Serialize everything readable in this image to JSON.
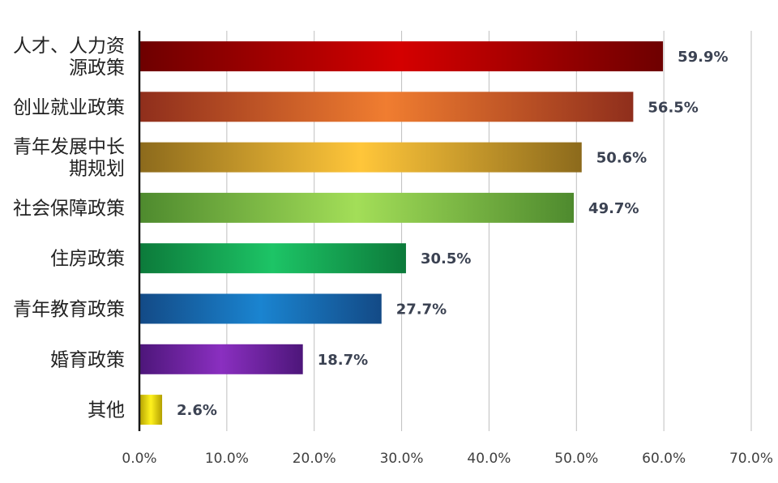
{
  "chart_data": {
    "type": "bar",
    "orientation": "horizontal",
    "title": "",
    "xlabel": "",
    "ylabel": "",
    "xlim": [
      0,
      70
    ],
    "x_ticks": [
      0,
      10,
      20,
      30,
      40,
      50,
      60,
      70
    ],
    "x_tick_labels": [
      "0.0%",
      "10.0%",
      "20.0%",
      "30.0%",
      "40.0%",
      "50.0%",
      "60.0%",
      "70.0%"
    ],
    "grid": true,
    "categories": [
      {
        "label_lines": [
          "人才、人力资",
          "源政策"
        ],
        "value": 59.9,
        "value_label": "59.9%",
        "color": "#d40000",
        "color_dark": "#6e0000"
      },
      {
        "label_lines": [
          "创业就业政策"
        ],
        "value": 56.5,
        "value_label": "56.5%",
        "color": "#f07d30",
        "color_dark": "#8f2e1c"
      },
      {
        "label_lines": [
          "青年发展中长",
          "期规划"
        ],
        "value": 50.6,
        "value_label": "50.6%",
        "color": "#ffc63a",
        "color_dark": "#8c6a1c"
      },
      {
        "label_lines": [
          "社会保障政策"
        ],
        "value": 49.7,
        "value_label": "49.7%",
        "color": "#a3de58",
        "color_dark": "#4e8a2e"
      },
      {
        "label_lines": [
          "住房政策"
        ],
        "value": 30.5,
        "value_label": "30.5%",
        "color": "#1dc466",
        "color_dark": "#0c7a3a"
      },
      {
        "label_lines": [
          "青年教育政策"
        ],
        "value": 27.7,
        "value_label": "27.7%",
        "color": "#1a84d0",
        "color_dark": "#134a86"
      },
      {
        "label_lines": [
          "婚育政策"
        ],
        "value": 18.7,
        "value_label": "18.7%",
        "color": "#8a2fc0",
        "color_dark": "#4d167a"
      },
      {
        "label_lines": [
          "其他"
        ],
        "value": 2.6,
        "value_label": "2.6%",
        "color": "#fff21e",
        "color_dark": "#b3a000"
      }
    ]
  }
}
